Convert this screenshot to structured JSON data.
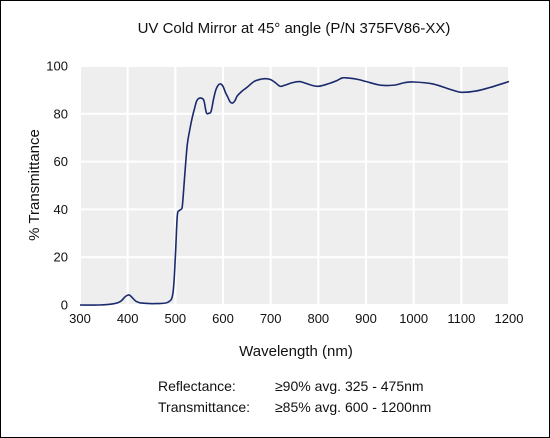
{
  "chart_data": {
    "type": "line",
    "title": "UV Cold Mirror at 45° angle (P/N 375FV86-XX)",
    "xlabel": "Wavelength (nm)",
    "ylabel": "% Transmittance",
    "xlim": [
      300,
      1200
    ],
    "ylim": [
      0,
      100
    ],
    "xticks": [
      300,
      400,
      500,
      600,
      700,
      800,
      900,
      1000,
      1100,
      1200
    ],
    "yticks": [
      0,
      20,
      40,
      60,
      80,
      100
    ],
    "grid": true,
    "colors": {
      "line": "#1a2a6c",
      "plot_bg": "#eeeeee",
      "grid": "#ffffff"
    },
    "series": [
      {
        "x": [
          300,
          340,
          370,
          385,
          395,
          403,
          410,
          418,
          430,
          460,
          485,
          495,
          500,
          504,
          508,
          512,
          515,
          520,
          525,
          530,
          535,
          540,
          545,
          550,
          555,
          560,
          565,
          570,
          575,
          580,
          585,
          590,
          595,
          600,
          605,
          610,
          615,
          620,
          625,
          630,
          640,
          650,
          665,
          680,
          690,
          700,
          710,
          720,
          730,
          745,
          760,
          770,
          785,
          800,
          820,
          840,
          850,
          860,
          880,
          900,
          930,
          960,
          980,
          1000,
          1040,
          1080,
          1100,
          1130,
          1160,
          1200
        ],
        "y": [
          0,
          0,
          0.5,
          1.5,
          3.5,
          4.2,
          3.0,
          1.5,
          0.8,
          0.6,
          1.2,
          5,
          20,
          37,
          39.5,
          40,
          42,
          55,
          67,
          73,
          78,
          82,
          85.5,
          86.5,
          86.5,
          85.5,
          80.5,
          80.2,
          81,
          86,
          90,
          92,
          92.5,
          91.5,
          89,
          87,
          85,
          84.5,
          85.5,
          87.5,
          89.5,
          91,
          93.5,
          94.5,
          94.7,
          94.3,
          93,
          91.5,
          92,
          93,
          93.5,
          93,
          92,
          91.5,
          92.5,
          94,
          95,
          95,
          94.5,
          93.5,
          92,
          92,
          93,
          93.3,
          92.5,
          90,
          89,
          89.5,
          91,
          93.5
        ]
      }
    ],
    "annotations": [
      {
        "label": "Reflectance:",
        "value": "≥90% avg. 325 - 475nm"
      },
      {
        "label": "Transmittance:",
        "value": "≥85% avg. 600 - 1200nm"
      }
    ]
  }
}
